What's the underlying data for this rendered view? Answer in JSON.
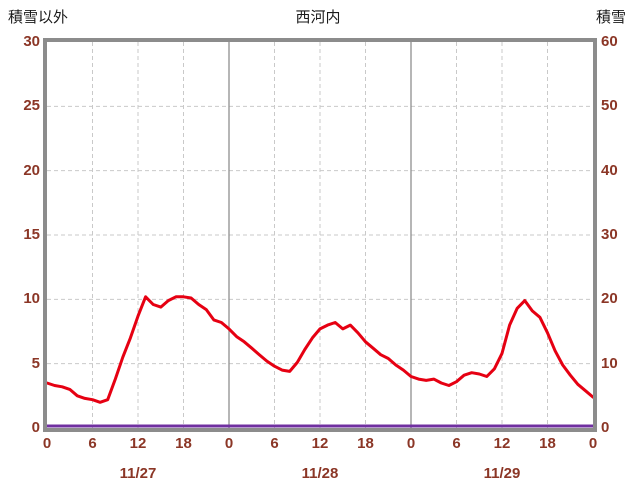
{
  "chart_data": {
    "type": "line",
    "title": "西河内",
    "left_axis": {
      "label": "積雪以外",
      "min": 0,
      "max": 30,
      "tick_step": 5,
      "tick_labels": [
        "0",
        "5",
        "10",
        "15",
        "20",
        "25",
        "30"
      ]
    },
    "right_axis": {
      "label": "積雪",
      "min": 0,
      "max": 60,
      "tick_step": 10,
      "tick_labels": [
        "0",
        "10",
        "20",
        "30",
        "40",
        "50",
        "60"
      ]
    },
    "x_axis": {
      "hours_total": 72,
      "tick_interval": 6,
      "tick_labels": [
        "0",
        "6",
        "12",
        "18",
        "0",
        "6",
        "12",
        "18",
        "0",
        "6",
        "12",
        "18",
        "0"
      ],
      "date_labels": [
        "11/27",
        "11/28",
        "11/29"
      ],
      "date_centers_hours": [
        12,
        36,
        60
      ],
      "day_boundaries": [
        24,
        48
      ]
    },
    "series": [
      {
        "name": "積雪以外",
        "axis": "left",
        "color": "#e60012",
        "width": 3,
        "values": [
          3.5,
          3.3,
          3.2,
          3.0,
          2.5,
          2.3,
          2.2,
          2.0,
          2.2,
          3.8,
          5.5,
          7.0,
          8.7,
          10.2,
          9.6,
          9.4,
          9.9,
          10.2,
          10.2,
          10.1,
          9.6,
          9.2,
          8.4,
          8.2,
          7.7,
          7.1,
          6.7,
          6.2,
          5.7,
          5.2,
          4.8,
          4.5,
          4.4,
          5.1,
          6.1,
          7.0,
          7.7,
          8.0,
          8.2,
          7.7,
          8.0,
          7.4,
          6.7,
          6.2,
          5.7,
          5.4,
          4.9,
          4.5,
          4.0,
          3.8,
          3.7,
          3.8,
          3.5,
          3.3,
          3.6,
          4.1,
          4.3,
          4.2,
          4.0,
          4.6,
          5.8,
          8.0,
          9.3,
          9.9,
          9.1,
          8.6,
          7.4,
          6.0,
          4.9,
          4.1,
          3.4,
          2.9,
          2.4
        ]
      },
      {
        "name": "積雪",
        "axis": "right",
        "color": "#7030a0",
        "width": 3,
        "values": [
          0,
          0
        ]
      }
    ],
    "style": {
      "grid_color": "#c9c9c9",
      "day_line_color": "#8f8f8f",
      "frame_color": "#8c8c8c",
      "axis_label_color": "#8b3626",
      "title_color": "#1a1a1a",
      "plot_bg": "#ffffff"
    },
    "grid": "on",
    "legend": "none"
  }
}
